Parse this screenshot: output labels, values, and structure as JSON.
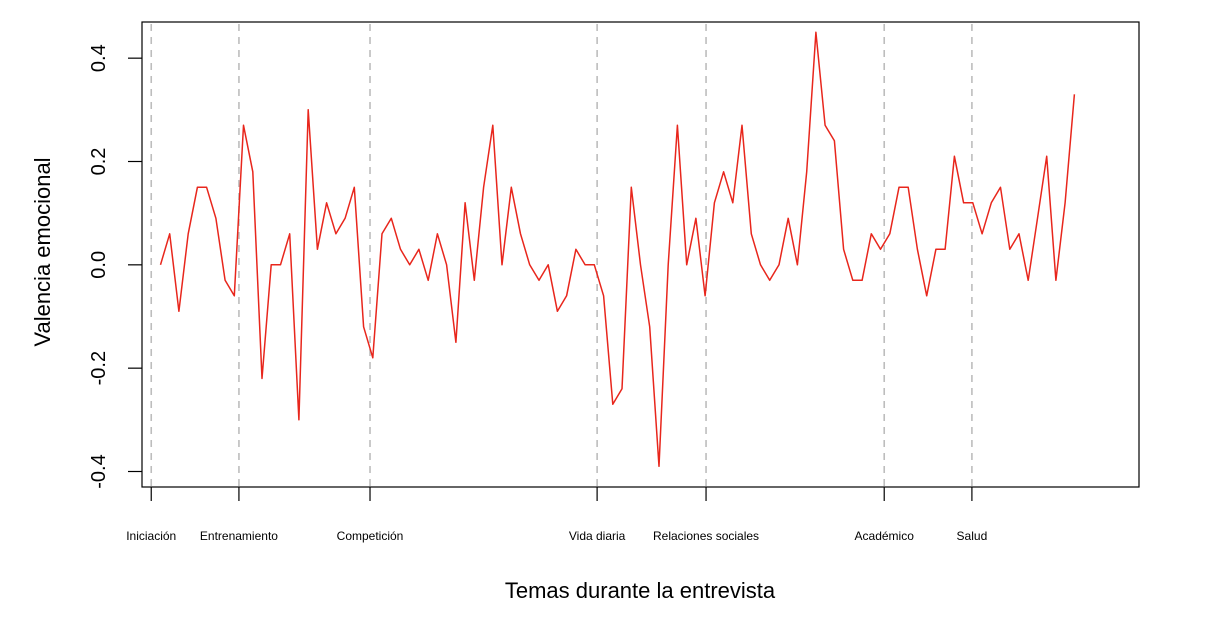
{
  "chart_data": {
    "type": "line",
    "title": "",
    "xlabel": "Temas durante la entrevista",
    "ylabel": "Valencia emocional",
    "ylim": [
      -0.43,
      0.47
    ],
    "xlim": [
      -1,
      107
    ],
    "yticks": [
      {
        "value": -0.4,
        "label": "-0.4"
      },
      {
        "value": -0.2,
        "label": "-0.2"
      },
      {
        "value": 0.0,
        "label": "0.0"
      },
      {
        "value": 0.2,
        "label": "0.2"
      },
      {
        "value": 0.4,
        "label": "0.4"
      }
    ],
    "sections": [
      {
        "x": 0,
        "label": "Iniciación"
      },
      {
        "x": 9.5,
        "label": "Entrenamiento"
      },
      {
        "x": 23.7,
        "label": "Competición"
      },
      {
        "x": 48.3,
        "label": "Vida diaria"
      },
      {
        "x": 60.1,
        "label": "Relaciones sociales"
      },
      {
        "x": 79.4,
        "label": "Académico"
      },
      {
        "x": 88.9,
        "label": "Salud"
      }
    ],
    "grid": false,
    "series": [
      {
        "color": "#e8261c",
        "x": [
          1,
          2,
          3,
          4,
          5,
          6,
          7,
          8,
          9,
          10,
          11,
          12,
          13,
          14,
          15,
          16,
          17,
          18,
          19,
          20,
          21,
          22,
          23,
          24,
          25,
          26,
          27,
          28,
          29,
          30,
          31,
          32,
          33,
          34,
          35,
          36,
          37,
          38,
          39,
          40,
          41,
          42,
          43,
          44,
          45,
          46,
          47,
          48,
          49,
          50,
          51,
          52,
          53,
          54,
          55,
          56,
          57,
          58,
          59,
          60,
          61,
          62,
          63,
          64,
          65,
          66,
          67,
          68,
          69,
          70,
          71,
          72,
          73,
          74,
          75,
          76,
          77,
          78,
          79,
          80,
          81,
          82,
          83,
          84,
          85,
          86,
          87,
          88,
          89,
          90,
          91,
          92,
          93,
          94,
          95,
          96,
          97,
          98,
          99,
          100
        ],
        "values": [
          0.0,
          0.06,
          -0.09,
          0.06,
          0.15,
          0.15,
          0.09,
          -0.03,
          -0.06,
          0.27,
          0.18,
          -0.22,
          0.0,
          0.0,
          0.06,
          -0.3,
          0.3,
          0.03,
          0.12,
          0.06,
          0.09,
          0.15,
          -0.12,
          -0.18,
          0.06,
          0.09,
          0.03,
          0.0,
          0.03,
          -0.03,
          0.06,
          0.0,
          -0.15,
          0.12,
          -0.03,
          0.15,
          0.27,
          0.0,
          0.15,
          0.06,
          0.0,
          -0.03,
          0.0,
          -0.09,
          -0.06,
          0.03,
          0.0,
          0.0,
          -0.06,
          -0.27,
          -0.24,
          0.15,
          0.0,
          -0.12,
          -0.39,
          0.0,
          0.27,
          0.0,
          0.09,
          -0.06,
          0.12,
          0.18,
          0.12,
          0.27,
          0.06,
          0.0,
          -0.03,
          0.0,
          0.09,
          0.0,
          0.18,
          0.45,
          0.27,
          0.24,
          0.03,
          -0.03,
          -0.03,
          0.06,
          0.03,
          0.06,
          0.15,
          0.15,
          0.03,
          -0.06,
          0.03,
          0.03,
          0.21,
          0.12,
          0.12,
          0.06,
          0.12,
          0.15,
          0.03,
          0.06,
          -0.03,
          0.09,
          0.21,
          -0.03,
          0.12,
          0.33
        ]
      }
    ]
  }
}
